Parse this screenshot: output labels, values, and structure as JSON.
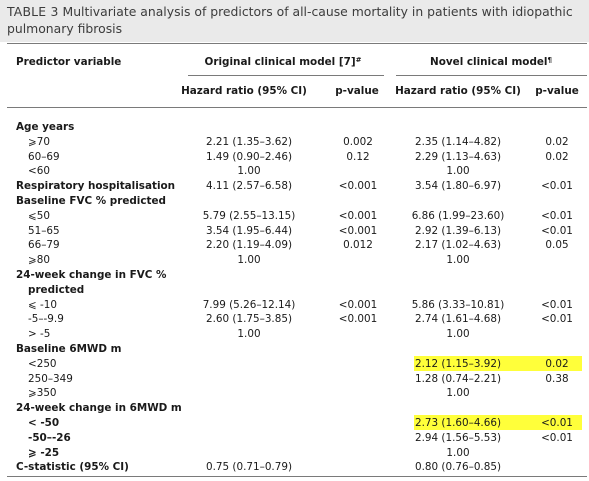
{
  "caption": {
    "label": "TABLE 3",
    "text": "Multivariate analysis of predictors of all-cause mortality in patients with idiopathic pulmonary fibrosis"
  },
  "header": {
    "predictor": "Predictor variable",
    "original_model": "Original clinical model [7]",
    "original_sup": "#",
    "novel_model": "Novel clinical model",
    "novel_sup": "¶",
    "hr_label": "Hazard ratio (95% CI)",
    "p_label": "p-value"
  },
  "rows": [
    {
      "label": "Age years",
      "bold": true,
      "orig_hr": "",
      "orig_p": "",
      "novel_hr": "",
      "novel_p": ""
    },
    {
      "label": "⩾70",
      "indent": true,
      "orig_hr": "2.21 (1.35–3.62)",
      "orig_p": "0.002",
      "novel_hr": "2.35 (1.14–4.82)",
      "novel_p": "0.02"
    },
    {
      "label": "60–69",
      "indent": true,
      "orig_hr": "1.49 (0.90–2.46)",
      "orig_p": "0.12",
      "novel_hr": "2.29 (1.13–4.63)",
      "novel_p": "0.02"
    },
    {
      "label": "<60",
      "indent": true,
      "orig_hr": "1.00",
      "orig_p": "",
      "novel_hr": "1.00",
      "novel_p": ""
    },
    {
      "label": "Respiratory hospitalisation",
      "bold": true,
      "orig_hr": "4.11 (2.57–6.58)",
      "orig_p": "<0.001",
      "novel_hr": "3.54 (1.80–6.97)",
      "novel_p": "<0.01"
    },
    {
      "label": "Baseline FVC % predicted",
      "bold": true,
      "orig_hr": "",
      "orig_p": "",
      "novel_hr": "",
      "novel_p": ""
    },
    {
      "label": "⩽50",
      "indent": true,
      "orig_hr": "5.79 (2.55–13.15)",
      "orig_p": "<0.001",
      "novel_hr": "6.86 (1.99–23.60)",
      "novel_p": "<0.01"
    },
    {
      "label": "51–65",
      "indent": true,
      "orig_hr": "3.54 (1.95–6.44)",
      "orig_p": "<0.001",
      "novel_hr": "2.92 (1.39–6.13)",
      "novel_p": "<0.01"
    },
    {
      "label": "66–79",
      "indent": true,
      "orig_hr": "2.20 (1.19–4.09)",
      "orig_p": "0.012",
      "novel_hr": "2.17 (1.02–4.63)",
      "novel_p": "0.05"
    },
    {
      "label": "⩾80",
      "indent": true,
      "orig_hr": "1.00",
      "orig_p": "",
      "novel_hr": "1.00",
      "novel_p": ""
    },
    {
      "label": "24-week change in FVC %",
      "bold": true,
      "orig_hr": "",
      "orig_p": "",
      "novel_hr": "",
      "novel_p": ""
    },
    {
      "label": "predicted",
      "bold": true,
      "indent": true,
      "orig_hr": "",
      "orig_p": "",
      "novel_hr": "",
      "novel_p": ""
    },
    {
      "label": "⩽ -10",
      "indent": true,
      "orig_hr": "7.99 (5.26–12.14)",
      "orig_p": "<0.001",
      "novel_hr": "5.86 (3.33–10.81)",
      "novel_p": "<0.01"
    },
    {
      "label": "-5–-9.9",
      "indent": true,
      "orig_hr": "2.60 (1.75–3.85)",
      "orig_p": "<0.001",
      "novel_hr": "2.74 (1.61–4.68)",
      "novel_p": "<0.01"
    },
    {
      "label": "> -5",
      "indent": true,
      "orig_hr": "1.00",
      "orig_p": "",
      "novel_hr": "1.00",
      "novel_p": ""
    },
    {
      "label": "Baseline 6MWD m",
      "bold": true,
      "orig_hr": "",
      "orig_p": "",
      "novel_hr": "",
      "novel_p": ""
    },
    {
      "label": "<250",
      "indent": true,
      "orig_hr": "",
      "orig_p": "",
      "novel_hr": "2.12 (1.15–3.92)",
      "novel_p": "0.02",
      "highlight": true
    },
    {
      "label": "250–349",
      "indent": true,
      "orig_hr": "",
      "orig_p": "",
      "novel_hr": "1.28 (0.74–2.21)",
      "novel_p": "0.38"
    },
    {
      "label": "⩾350",
      "indent": true,
      "orig_hr": "",
      "orig_p": "",
      "novel_hr": "1.00",
      "novel_p": ""
    },
    {
      "label": "24-week change in 6MWD m",
      "bold": true,
      "orig_hr": "",
      "orig_p": "",
      "novel_hr": "",
      "novel_p": ""
    },
    {
      "label": "< -50",
      "indent": true,
      "bold": true,
      "orig_hr": "",
      "orig_p": "",
      "novel_hr": "2.73 (1.60–4.66)",
      "novel_p": "<0.01",
      "highlight": true
    },
    {
      "label": "-50–-26",
      "indent": true,
      "bold": true,
      "orig_hr": "",
      "orig_p": "",
      "novel_hr": "2.94 (1.56–5.53)",
      "novel_p": "<0.01"
    },
    {
      "label": "⩾ -25",
      "indent": true,
      "bold": true,
      "orig_hr": "",
      "orig_p": "",
      "novel_hr": "1.00",
      "novel_p": ""
    },
    {
      "label": "C-statistic (95% CI)",
      "bold": true,
      "orig_hr": "0.75 (0.71–0.79)",
      "orig_p": "",
      "novel_hr": "0.80 (0.76–0.85)",
      "novel_p": ""
    }
  ],
  "highlight_color": "#ffff3a"
}
